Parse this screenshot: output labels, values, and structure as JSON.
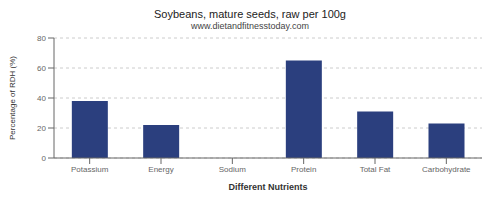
{
  "chart_data": {
    "type": "bar",
    "title": "Soybeans, mature seeds, raw per 100g",
    "subtitle": "www.dietandfitnesstoday.com",
    "xlabel": "Different Nutrients",
    "ylabel": "Percentage of RDH (%)",
    "categories": [
      "Potassium",
      "Energy",
      "Sodium",
      "Protein",
      "Total Fat",
      "Carbohydrate"
    ],
    "values": [
      38,
      22,
      0,
      65,
      31,
      23
    ],
    "color": "#2b3f7e",
    "ylim": [
      0,
      80
    ],
    "yticks": [
      0,
      20,
      40,
      60,
      80
    ],
    "grid": true
  }
}
